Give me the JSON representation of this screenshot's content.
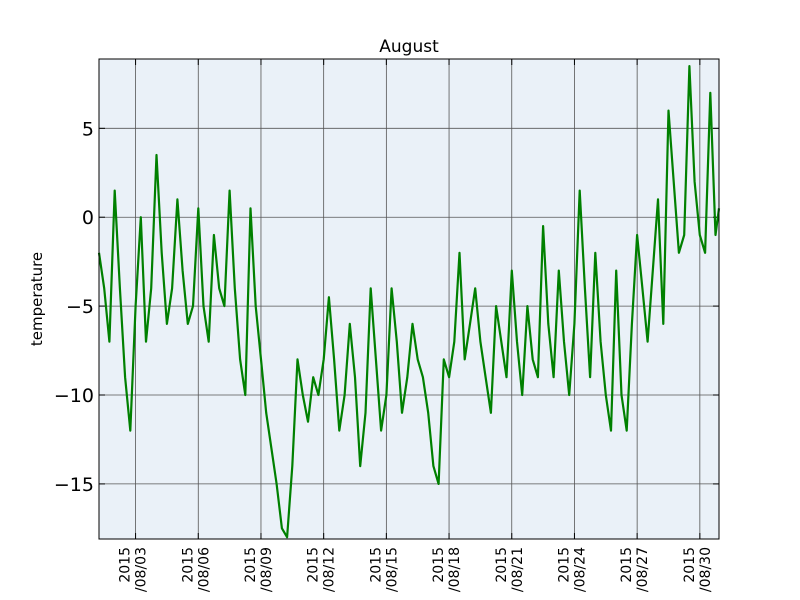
{
  "chart_data": {
    "type": "line",
    "title": "August",
    "xlabel": "",
    "ylabel": "temperature",
    "ylim": [
      -18.1,
      8.9
    ],
    "xlim": [
      "2015-08-01 06:00",
      "2015-08-30 22:00"
    ],
    "yticks": [
      {
        "value": 5,
        "label": "5"
      },
      {
        "value": 0,
        "label": "0"
      },
      {
        "value": -5,
        "label": "−5"
      },
      {
        "value": -10,
        "label": "−10"
      },
      {
        "value": -15,
        "label": "−15"
      }
    ],
    "xticks": [
      {
        "value": "2015-08-03",
        "label_line1": "2015",
        "label_line2": "/08/03"
      },
      {
        "value": "2015-08-06",
        "label_line1": "2015",
        "label_line2": "/08/06"
      },
      {
        "value": "2015-08-09",
        "label_line1": "2015",
        "label_line2": "/08/09"
      },
      {
        "value": "2015-08-12",
        "label_line1": "2015",
        "label_line2": "/08/12"
      },
      {
        "value": "2015-08-15",
        "label_line1": "2015",
        "label_line2": "/08/15"
      },
      {
        "value": "2015-08-18",
        "label_line1": "2015",
        "label_line2": "/08/18"
      },
      {
        "value": "2015-08-21",
        "label_line1": "2015",
        "label_line2": "/08/21"
      },
      {
        "value": "2015-08-24",
        "label_line1": "2015",
        "label_line2": "/08/24"
      },
      {
        "value": "2015-08-27",
        "label_line1": "2015",
        "label_line2": "/08/27"
      },
      {
        "value": "2015-08-30",
        "label_line1": "2015",
        "label_line2": "/08/30"
      }
    ],
    "grid": true,
    "background_color": "#eaf1f8",
    "series": [
      {
        "color": "#008000",
        "x": [
          "2015-08-01 06:00",
          "2015-08-01 12:00",
          "2015-08-01 18:00",
          "2015-08-02 00:00",
          "2015-08-02 06:00",
          "2015-08-02 12:00",
          "2015-08-02 18:00",
          "2015-08-03 00:00",
          "2015-08-03 06:00",
          "2015-08-03 12:00",
          "2015-08-03 18:00",
          "2015-08-04 00:00",
          "2015-08-04 06:00",
          "2015-08-04 12:00",
          "2015-08-04 18:00",
          "2015-08-05 00:00",
          "2015-08-05 06:00",
          "2015-08-05 12:00",
          "2015-08-05 18:00",
          "2015-08-06 00:00",
          "2015-08-06 06:00",
          "2015-08-06 12:00",
          "2015-08-06 18:00",
          "2015-08-07 00:00",
          "2015-08-07 06:00",
          "2015-08-07 12:00",
          "2015-08-07 18:00",
          "2015-08-08 00:00",
          "2015-08-08 06:00",
          "2015-08-08 12:00",
          "2015-08-08 18:00",
          "2015-08-09 00:00",
          "2015-08-09 06:00",
          "2015-08-09 12:00",
          "2015-08-09 18:00",
          "2015-08-10 00:00",
          "2015-08-10 06:00",
          "2015-08-10 12:00",
          "2015-08-10 18:00",
          "2015-08-11 00:00",
          "2015-08-11 06:00",
          "2015-08-11 12:00",
          "2015-08-11 18:00",
          "2015-08-12 00:00",
          "2015-08-12 06:00",
          "2015-08-12 12:00",
          "2015-08-12 18:00",
          "2015-08-13 00:00",
          "2015-08-13 06:00",
          "2015-08-13 12:00",
          "2015-08-13 18:00",
          "2015-08-14 00:00",
          "2015-08-14 06:00",
          "2015-08-14 12:00",
          "2015-08-14 18:00",
          "2015-08-15 00:00",
          "2015-08-15 06:00",
          "2015-08-15 12:00",
          "2015-08-15 18:00",
          "2015-08-16 00:00",
          "2015-08-16 06:00",
          "2015-08-16 12:00",
          "2015-08-16 18:00",
          "2015-08-17 00:00",
          "2015-08-17 06:00",
          "2015-08-17 12:00",
          "2015-08-17 18:00",
          "2015-08-18 00:00",
          "2015-08-18 06:00",
          "2015-08-18 12:00",
          "2015-08-18 18:00",
          "2015-08-19 00:00",
          "2015-08-19 06:00",
          "2015-08-19 12:00",
          "2015-08-19 18:00",
          "2015-08-20 00:00",
          "2015-08-20 06:00",
          "2015-08-20 12:00",
          "2015-08-20 18:00",
          "2015-08-21 00:00",
          "2015-08-21 06:00",
          "2015-08-21 12:00",
          "2015-08-21 18:00",
          "2015-08-22 00:00",
          "2015-08-22 06:00",
          "2015-08-22 12:00",
          "2015-08-22 18:00",
          "2015-08-23 00:00",
          "2015-08-23 06:00",
          "2015-08-23 12:00",
          "2015-08-23 18:00",
          "2015-08-24 00:00",
          "2015-08-24 06:00",
          "2015-08-24 12:00",
          "2015-08-24 18:00",
          "2015-08-25 00:00",
          "2015-08-25 06:00",
          "2015-08-25 12:00",
          "2015-08-25 18:00",
          "2015-08-26 00:00",
          "2015-08-26 06:00",
          "2015-08-26 12:00",
          "2015-08-26 18:00",
          "2015-08-27 00:00",
          "2015-08-27 06:00",
          "2015-08-27 12:00",
          "2015-08-27 18:00",
          "2015-08-28 00:00",
          "2015-08-28 06:00",
          "2015-08-28 12:00",
          "2015-08-28 18:00",
          "2015-08-29 00:00",
          "2015-08-29 06:00",
          "2015-08-29 12:00",
          "2015-08-29 18:00",
          "2015-08-30 00:00",
          "2015-08-30 06:00",
          "2015-08-30 12:00",
          "2015-08-30 18:00",
          "2015-08-30 22:00"
        ],
        "y": [
          -2,
          -4,
          -7,
          1.5,
          -4,
          -9,
          -12,
          -5,
          0,
          -7,
          -4,
          3.5,
          -2,
          -6,
          -4,
          1,
          -3,
          -6,
          -5,
          0.5,
          -5,
          -7,
          -1,
          -4,
          -5,
          1.5,
          -4,
          -8,
          -10,
          0.5,
          -5,
          -8,
          -11,
          -13,
          -15,
          -17.5,
          -18,
          -14,
          -8,
          -10,
          -11.5,
          -9,
          -10,
          -8,
          -4.5,
          -8,
          -12,
          -10,
          -6,
          -9,
          -14,
          -11,
          -4,
          -8,
          -12,
          -10,
          -4,
          -7,
          -11,
          -9,
          -6,
          -8,
          -9,
          -11,
          -14,
          -15,
          -8,
          -9,
          -7,
          -2,
          -8,
          -6,
          -4,
          -7,
          -9,
          -11,
          -5,
          -7,
          -9,
          -3,
          -7,
          -10,
          -5,
          -8,
          -9,
          -0.5,
          -6,
          -9,
          -3,
          -7,
          -10,
          -6,
          1.5,
          -4,
          -9,
          -2,
          -7,
          -10,
          -12,
          -3,
          -10,
          -12,
          -6,
          -1,
          -4,
          -7,
          -3,
          1,
          -6,
          6,
          2,
          -2,
          -1,
          8.5,
          2,
          -1,
          -2,
          7,
          -1,
          0.5
        ]
      }
    ]
  }
}
